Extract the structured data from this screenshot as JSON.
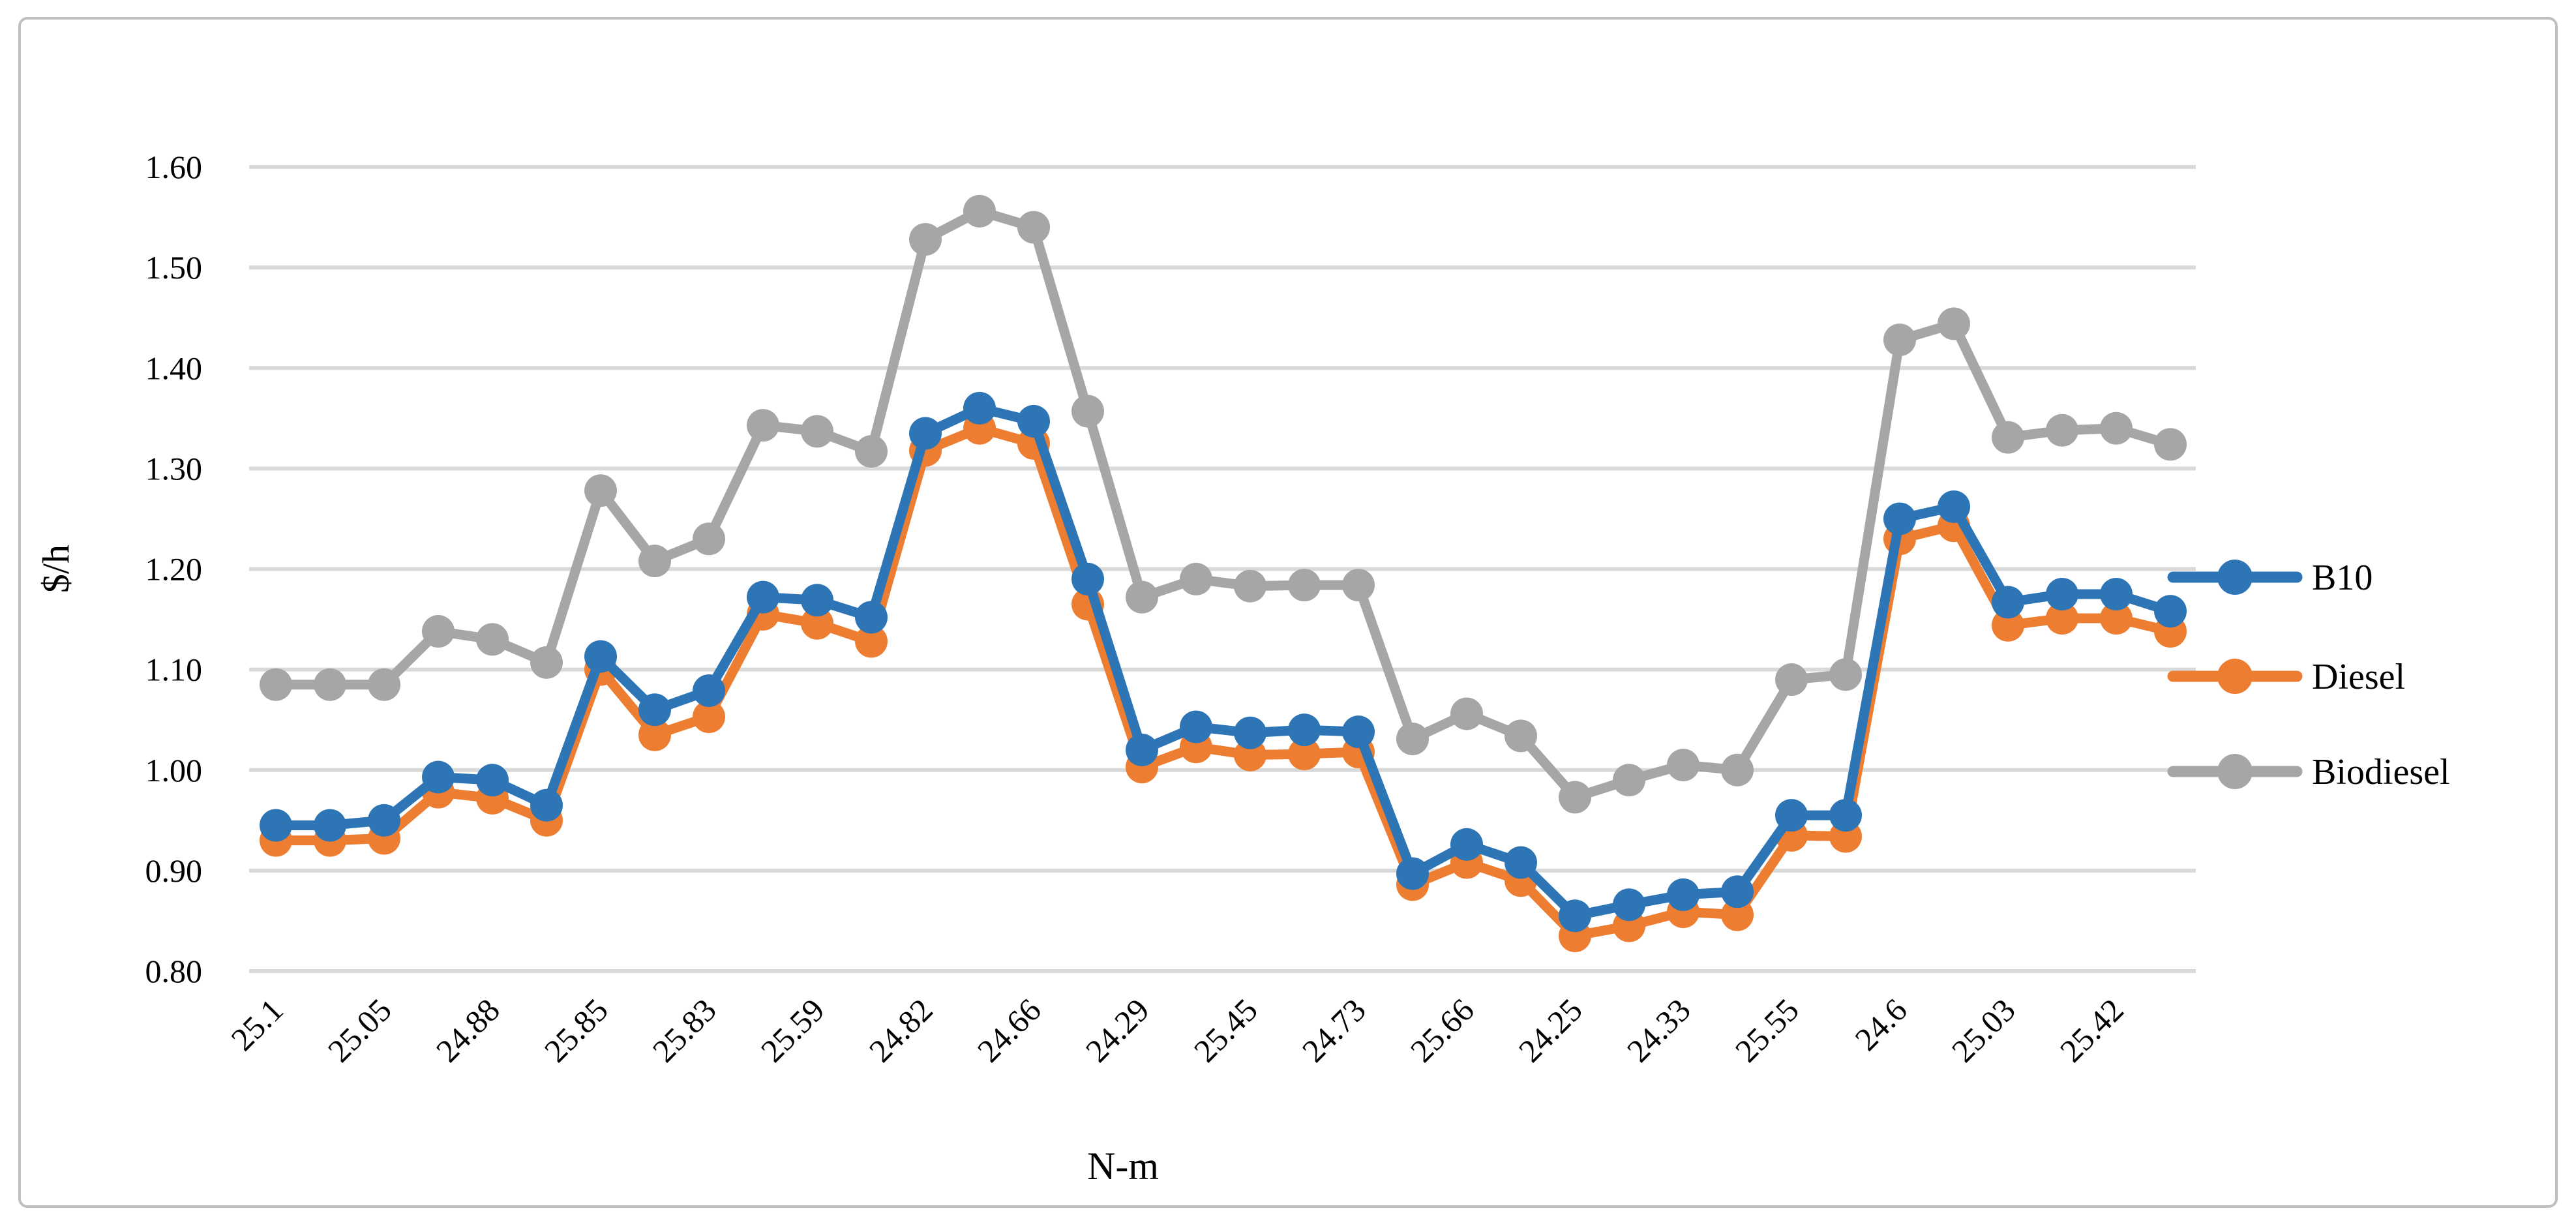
{
  "figure": {
    "type_note": "line chart figure with outer rounded border",
    "border_color": "#BFBFBF",
    "background": "#FFFFFF"
  },
  "chart_data": {
    "type": "line",
    "title": "",
    "xlabel": "N-m",
    "ylabel": "$/h",
    "ylim": [
      0.8,
      1.6
    ],
    "ytick_step": 0.1,
    "ytick_labels": [
      "0.80",
      "0.90",
      "1.00",
      "1.10",
      "1.20",
      "1.30",
      "1.40",
      "1.50",
      "1.60"
    ],
    "grid": "horizontal",
    "gridline_color": "#D9D9D9",
    "legend_position": "right",
    "x_label_interval": 2,
    "x_visible_labels": [
      "25.1",
      "25.05",
      "24.88",
      "25.85",
      "25.83",
      "25.59",
      "24.82",
      "24.66",
      "24.29",
      "25.45",
      "24.73",
      "25.66",
      "24.25",
      "24.33",
      "25.55",
      "24.6",
      "25.03",
      "25.42"
    ],
    "categories": [
      "25.1",
      "",
      "25.05",
      "",
      "24.88",
      "",
      "25.85",
      "",
      "25.83",
      "",
      "25.59",
      "",
      "24.82",
      "",
      "24.66",
      "",
      "24.29",
      "",
      "25.45",
      "",
      "24.73",
      "",
      "25.66",
      "",
      "24.25",
      "",
      "24.33",
      "",
      "25.55",
      "",
      "24.6",
      "",
      "25.03",
      "",
      "25.42",
      ""
    ],
    "series": [
      {
        "name": "B10",
        "color": "#2E75B6",
        "values": [
          0.945,
          0.945,
          0.95,
          0.993,
          0.99,
          0.965,
          1.113,
          1.06,
          1.079,
          1.172,
          1.169,
          1.152,
          1.335,
          1.36,
          1.347,
          1.19,
          1.02,
          1.043,
          1.037,
          1.04,
          1.038,
          0.897,
          0.926,
          0.908,
          0.855,
          0.866,
          0.876,
          0.879,
          0.955,
          0.955,
          1.25,
          1.262,
          1.167,
          1.175,
          1.175,
          1.158
        ]
      },
      {
        "name": "Diesel",
        "color": "#ED7D31",
        "values": [
          0.93,
          0.93,
          0.932,
          0.978,
          0.972,
          0.95,
          1.1,
          1.035,
          1.053,
          1.155,
          1.146,
          1.128,
          1.318,
          1.34,
          1.325,
          1.165,
          1.003,
          1.023,
          1.015,
          1.016,
          1.018,
          0.886,
          0.908,
          0.89,
          0.835,
          0.845,
          0.859,
          0.856,
          0.935,
          0.934,
          1.23,
          1.243,
          1.144,
          1.151,
          1.151,
          1.138
        ]
      },
      {
        "name": "Biodiesel",
        "color": "#A6A6A6",
        "values": [
          1.085,
          1.085,
          1.085,
          1.138,
          1.13,
          1.107,
          1.278,
          1.208,
          1.23,
          1.343,
          1.337,
          1.317,
          1.528,
          1.556,
          1.54,
          1.357,
          1.172,
          1.19,
          1.183,
          1.184,
          1.184,
          1.031,
          1.056,
          1.034,
          0.973,
          0.99,
          1.005,
          1.0,
          1.09,
          1.095,
          1.428,
          1.444,
          1.331,
          1.338,
          1.34,
          1.324
        ]
      }
    ]
  }
}
